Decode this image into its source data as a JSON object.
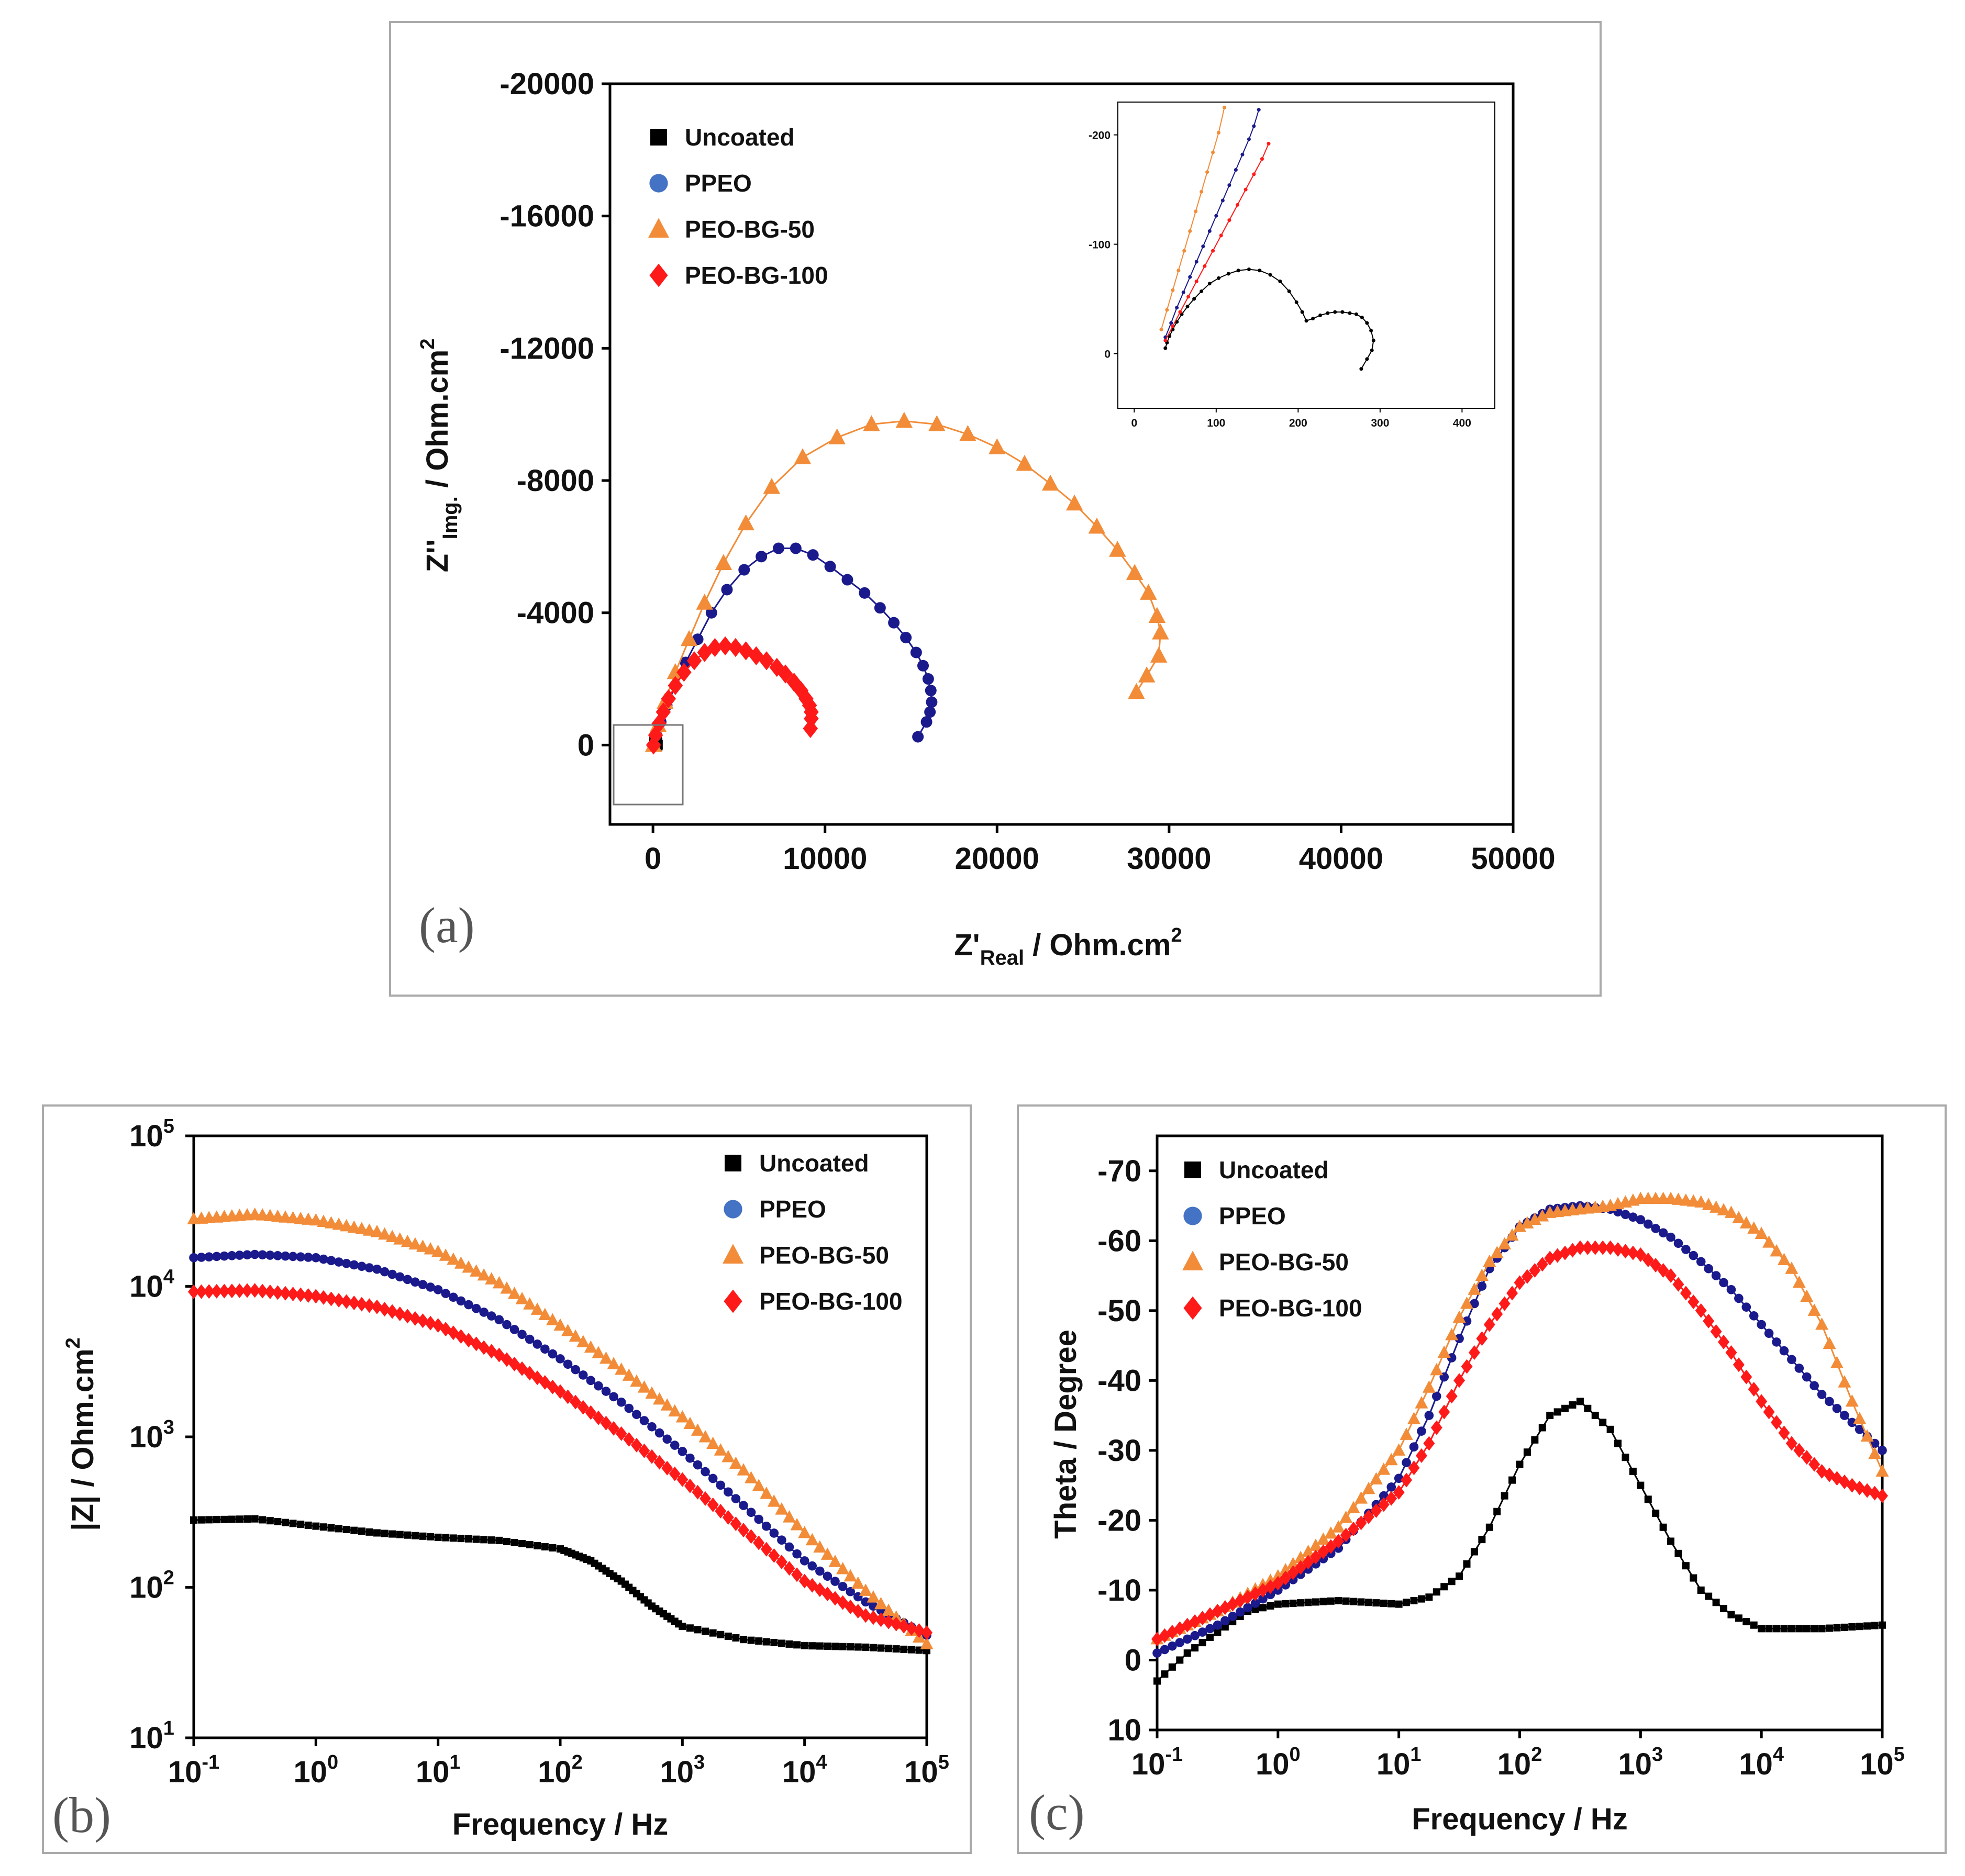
{
  "colors": {
    "uncoated": "#000000",
    "ppeo": "#1a1a8c",
    "ppeo_legend": "#4472c4",
    "peo_bg_50": "#f28c38",
    "peo_bg_100": "#ff1a1a",
    "frame": "#aaaaaa"
  },
  "chart_data": [
    {
      "id": "a",
      "type": "scatter",
      "panel_label": "(a)",
      "title": "",
      "xlabel": "Z'",
      "xlabel_sub": "Real",
      "xlabel_tail": " / Ohm.cm",
      "xlabel_sup": "2",
      "ylabel": "Z''",
      "ylabel_sub": "Img.",
      "ylabel_tail": " / Ohm.cm",
      "ylabel_sup": "2",
      "xlim": [
        -2500,
        50000
      ],
      "ylim": [
        2400,
        -20000
      ],
      "xticks": [
        0,
        10000,
        20000,
        30000,
        40000,
        50000
      ],
      "xtick_labels": [
        "0",
        "10000",
        "20000",
        "30000",
        "40000",
        "50000"
      ],
      "yticks": [
        -20000,
        -16000,
        -12000,
        -8000,
        -4000,
        0
      ],
      "ytick_labels": [
        "-20000",
        "-16000",
        "-12000",
        "-8000",
        "-4000",
        "0"
      ],
      "legend": [
        "Uncoated",
        "PPEO",
        "PEO-BG-50",
        "PEO-BG-100"
      ],
      "legend_position": "top-left",
      "series": [
        {
          "name": "Uncoated",
          "marker": "square",
          "x": [
            40,
            60,
            100,
            140,
            180,
            210,
            240,
            270,
            295,
            280
          ],
          "y": [
            -30,
            -120,
            -190,
            -185,
            -120,
            -70,
            -90,
            -70,
            -10,
            20
          ]
        },
        {
          "name": "PPEO",
          "marker": "circle",
          "x": [
            30,
            200,
            450,
            800,
            1300,
            1900,
            2600,
            3400,
            4300,
            5300,
            6300,
            7300,
            8300,
            9300,
            10300,
            11300,
            12300,
            13200,
            14000,
            14700,
            15300,
            15700,
            16000,
            16150,
            16200,
            16100,
            15900,
            15400
          ],
          "y": [
            0,
            -300,
            -700,
            -1200,
            -1800,
            -2500,
            -3200,
            -4000,
            -4700,
            -5300,
            -5700,
            -5950,
            -5950,
            -5750,
            -5400,
            -5000,
            -4600,
            -4150,
            -3700,
            -3250,
            -2800,
            -2400,
            -2000,
            -1650,
            -1300,
            -1000,
            -700,
            -250
          ]
        },
        {
          "name": "PEO-BG-50",
          "marker": "triangle",
          "x": [
            30,
            300,
            700,
            1300,
            2100,
            3000,
            4100,
            5400,
            6900,
            8700,
            10700,
            12700,
            14600,
            16500,
            18300,
            20000,
            21600,
            23100,
            24500,
            25800,
            27000,
            28000,
            28800,
            29300,
            29500,
            29400,
            28700,
            28100
          ],
          "y": [
            0,
            -600,
            -1300,
            -2200,
            -3200,
            -4300,
            -5500,
            -6700,
            -7800,
            -8700,
            -9300,
            -9700,
            -9800,
            -9700,
            -9400,
            -9000,
            -8500,
            -7900,
            -7300,
            -6600,
            -5900,
            -5200,
            -4600,
            -3900,
            -3400,
            -2700,
            -2100,
            -1600
          ]
        },
        {
          "name": "PEO-BG-100",
          "marker": "diamond",
          "x": [
            30,
            150,
            350,
            600,
            900,
            1300,
            1800,
            2400,
            3000,
            3600,
            4200,
            4800,
            5400,
            6000,
            6600,
            7200,
            7700,
            8200,
            8600,
            8900,
            9100,
            9200,
            9200,
            9150
          ],
          "y": [
            0,
            -300,
            -650,
            -1000,
            -1400,
            -1800,
            -2200,
            -2550,
            -2800,
            -2950,
            -3000,
            -2950,
            -2850,
            -2700,
            -2550,
            -2350,
            -2150,
            -1900,
            -1650,
            -1400,
            -1200,
            -1000,
            -800,
            -500
          ]
        }
      ],
      "inset": {
        "xlim": [
          -20,
          440
        ],
        "ylim": [
          50,
          -230
        ],
        "xticks": [
          0,
          100,
          200,
          300,
          400
        ],
        "xtick_labels": [
          "0",
          "100",
          "200",
          "300",
          "400"
        ],
        "yticks": [
          -200,
          -100,
          0
        ],
        "ytick_labels": [
          "-200",
          "-100",
          "0"
        ],
        "series": [
          {
            "name": "Uncoated",
            "x": [
              38,
              40,
              43,
              47,
              52,
              58,
              65,
              73,
              82,
              92,
              103,
              115,
              127,
              140,
              153,
              166,
              178,
              189,
              198,
              205,
              210,
              218,
              227,
              236,
              245,
              254,
              263,
              271,
              278,
              284,
              289,
              292,
              290,
              284,
              277
            ],
            "y": [
              -5,
              -10,
              -16,
              -22,
              -29,
              -36,
              -43,
              -50,
              -57,
              -64,
              -69,
              -73,
              -76,
              -77,
              -76,
              -72,
              -66,
              -57,
              -47,
              -38,
              -30,
              -32,
              -35,
              -37,
              -38,
              -38,
              -37,
              -36,
              -33,
              -28,
              -21,
              -12,
              -3,
              5,
              14
            ]
          },
          {
            "name": "PPEO",
            "x": [
              38,
              45,
              52,
              60,
              68,
              76,
              84,
              92,
              100,
              108,
              116,
              124,
              132,
              140,
              146,
              152
            ],
            "y": [
              -15,
              -28,
              -42,
              -56,
              -70,
              -84,
              -98,
              -112,
              -126,
              -140,
              -154,
              -168,
              -182,
              -196,
              -208,
              -223
            ]
          },
          {
            "name": "PEO-BG-50",
            "x": [
              33,
              40,
              47,
              54,
              61,
              68,
              75,
              82,
              89,
              96,
              103,
              110
            ],
            "y": [
              -22,
              -40,
              -58,
              -76,
              -94,
              -112,
              -130,
              -148,
              -166,
              -184,
              -202,
              -225
            ]
          },
          {
            "name": "PEO-BG-100",
            "x": [
              38,
              47,
              56,
              66,
              76,
              86,
              96,
              106,
              116,
              126,
              136,
              146,
              156,
              164
            ],
            "y": [
              -12,
              -25,
              -38,
              -52,
              -66,
              -80,
              -94,
              -108,
              -122,
              -136,
              -150,
              -164,
              -178,
              -192
            ]
          }
        ]
      }
    },
    {
      "id": "b",
      "type": "line",
      "panel_label": "(b)",
      "title": "",
      "xlabel": "Frequency / Hz",
      "ylabel": "|Z| / Ohm.cm",
      "ylabel_sup": "2",
      "xscale": "log",
      "yscale": "log",
      "xlim": [
        0.1,
        100000
      ],
      "ylim": [
        10,
        100000
      ],
      "xtick_exponents": [
        -1,
        0,
        1,
        2,
        3,
        4,
        5
      ],
      "ytick_exponents": [
        1,
        2,
        3,
        4,
        5
      ],
      "tick_base": "10",
      "legend": [
        "Uncoated",
        "PPEO",
        "PEO-BG-50",
        "PEO-BG-100"
      ],
      "legend_position": "top-right",
      "series": [
        {
          "name": "Uncoated",
          "marker": "square",
          "x_log": [
            -1,
            -0.5,
            0,
            0.5,
            1,
            1.5,
            2,
            2.25,
            2.5,
            2.75,
            3,
            3.5,
            4,
            4.5,
            5
          ],
          "y": [
            280,
            285,
            255,
            230,
            215,
            205,
            180,
            150,
            110,
            75,
            55,
            45,
            41,
            40,
            38
          ]
        },
        {
          "name": "PPEO",
          "marker": "circle",
          "x_log": [
            -1,
            -0.5,
            0,
            0.5,
            1,
            1.5,
            2,
            2.5,
            3,
            3.5,
            4,
            4.5,
            5
          ],
          "y": [
            15500,
            16300,
            15500,
            13000,
            9500,
            6000,
            3300,
            1700,
            800,
            350,
            150,
            80,
            48
          ]
        },
        {
          "name": "PEO-BG-50",
          "marker": "triangle",
          "x_log": [
            -1,
            -0.5,
            0,
            0.5,
            1,
            1.5,
            2,
            2.5,
            3,
            3.5,
            4,
            4.5,
            5
          ],
          "y": [
            28000,
            30000,
            27500,
            23000,
            17000,
            10500,
            5500,
            2800,
            1350,
            600,
            230,
            95,
            42
          ]
        },
        {
          "name": "PEO-BG-100",
          "marker": "diamond",
          "x_log": [
            -1,
            -0.5,
            0,
            0.5,
            1,
            1.5,
            2,
            2.5,
            3,
            3.5,
            4,
            4.5,
            5
          ],
          "y": [
            9200,
            9400,
            8600,
            7300,
            5500,
            3500,
            2000,
            1050,
            520,
            240,
            110,
            65,
            50
          ]
        }
      ]
    },
    {
      "id": "c",
      "type": "line",
      "panel_label": "(c)",
      "title": "",
      "xlabel": "Frequency / Hz",
      "ylabel": "Theta / Degree",
      "xscale": "log",
      "xlim": [
        0.1,
        100000
      ],
      "ylim": [
        10,
        -75
      ],
      "xtick_exponents": [
        -1,
        0,
        1,
        2,
        3,
        4,
        5
      ],
      "tick_base": "10",
      "yticks": [
        -70,
        -60,
        -50,
        -40,
        -30,
        -20,
        -10,
        0,
        10
      ],
      "ytick_labels": [
        "-70",
        "-60",
        "-50",
        "-40",
        "-30",
        "-20",
        "-10",
        "0",
        "10"
      ],
      "legend": [
        "Uncoated",
        "PPEO",
        "PEO-BG-50",
        "PEO-BG-100"
      ],
      "legend_position": "top-left",
      "series": [
        {
          "name": "Uncoated",
          "marker": "square",
          "x_log": [
            -1,
            -0.75,
            -0.5,
            -0.25,
            0,
            0.5,
            1,
            1.25,
            1.5,
            1.75,
            2,
            2.25,
            2.5,
            2.75,
            3,
            3.25,
            3.5,
            3.75,
            4,
            4.5,
            5
          ],
          "y": [
            3,
            -1,
            -4,
            -7,
            -8,
            -8.5,
            -8,
            -9,
            -12,
            -19,
            -28,
            -35,
            -37,
            -33,
            -25,
            -17,
            -10,
            -6.5,
            -4.5,
            -4.5,
            -5
          ]
        },
        {
          "name": "PPEO",
          "marker": "circle",
          "x_log": [
            -1,
            -0.5,
            0,
            0.5,
            1,
            1.25,
            1.5,
            1.75,
            2,
            2.25,
            2.5,
            2.75,
            3,
            3.25,
            3.5,
            3.75,
            4,
            4.25,
            4.5,
            4.75,
            5
          ],
          "y": [
            -1,
            -5,
            -10,
            -16,
            -26,
            -35,
            -46,
            -56,
            -62,
            -64.5,
            -65,
            -64.5,
            -63,
            -60.5,
            -57,
            -53,
            -48,
            -43,
            -38,
            -34,
            -30
          ]
        },
        {
          "name": "PEO-BG-50",
          "marker": "triangle",
          "x_log": [
            -1,
            -0.5,
            0,
            0.5,
            1,
            1.25,
            1.5,
            1.75,
            2,
            2.25,
            2.5,
            2.75,
            3,
            3.25,
            3.5,
            3.75,
            4,
            4.25,
            4.5,
            4.75,
            5
          ],
          "y": [
            -3,
            -7,
            -12,
            -19,
            -30,
            -39,
            -49,
            -57,
            -62,
            -64,
            -64.5,
            -65,
            -66,
            -66,
            -65.5,
            -64,
            -61,
            -56,
            -48,
            -37,
            -27
          ]
        },
        {
          "name": "PEO-BG-100",
          "marker": "diamond",
          "x_log": [
            -1,
            -0.5,
            0,
            0.5,
            1,
            1.25,
            1.5,
            1.75,
            2,
            2.25,
            2.5,
            2.75,
            3,
            3.25,
            3.5,
            3.75,
            4,
            4.25,
            4.5,
            4.75,
            5
          ],
          "y": [
            -3,
            -7,
            -11,
            -17,
            -24,
            -31,
            -40,
            -48,
            -54,
            -57.5,
            -59,
            -59,
            -58,
            -55,
            -50,
            -44,
            -37,
            -31,
            -27,
            -25,
            -23.5
          ]
        }
      ]
    }
  ]
}
